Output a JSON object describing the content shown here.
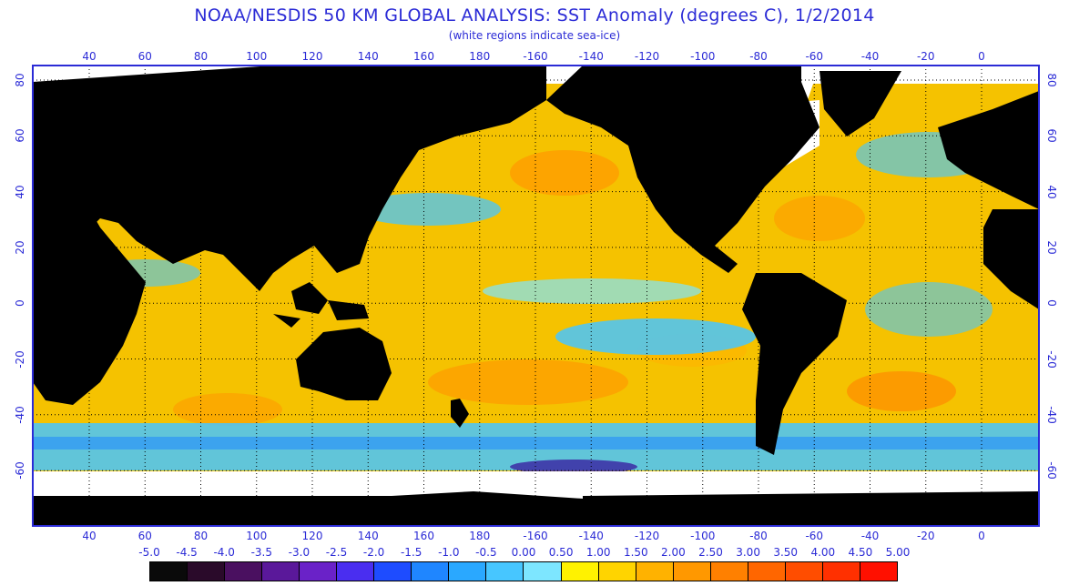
{
  "header": {
    "title": "NOAA/NESDIS 50 KM GLOBAL ANALYSIS: SST Anomaly (degrees C), 1/2/2014",
    "subtitle": "(white regions indicate sea-ice)"
  },
  "map": {
    "longitude_labels": [
      "40",
      "60",
      "80",
      "100",
      "120",
      "140",
      "160",
      "180",
      "-160",
      "-140",
      "-120",
      "-100",
      "-80",
      "-60",
      "-40",
      "-20",
      "0"
    ],
    "latitude_labels": [
      "80",
      "60",
      "40",
      "20",
      "0",
      "-20",
      "-40",
      "-60"
    ],
    "colors": {
      "frame": "#2b2bd6",
      "land": "#000000",
      "ice": "#ffffff",
      "grid": "#000000",
      "ocean_base": "#f5c200"
    }
  },
  "legend": {
    "labels": [
      "-5.0",
      "-4.5",
      "-4.0",
      "-3.5",
      "-3.0",
      "-2.5",
      "-2.0",
      "-1.5",
      "-1.0",
      "-0.5",
      "0.00",
      "0.50",
      "1.00",
      "1.50",
      "2.00",
      "2.50",
      "3.00",
      "3.50",
      "4.00",
      "4.50",
      "5.00"
    ],
    "colors": [
      "#0a0a0a",
      "#2a0a2a",
      "#4a1060",
      "#5a189a",
      "#6a22c8",
      "#4a2ef0",
      "#1e4cff",
      "#1f86ff",
      "#2aa8ff",
      "#47c6ff",
      "#7de6ff",
      "#fff200",
      "#ffd400",
      "#ffb200",
      "#ff9800",
      "#ff8000",
      "#ff6600",
      "#ff4d00",
      "#ff3000",
      "#ff1000"
    ]
  }
}
